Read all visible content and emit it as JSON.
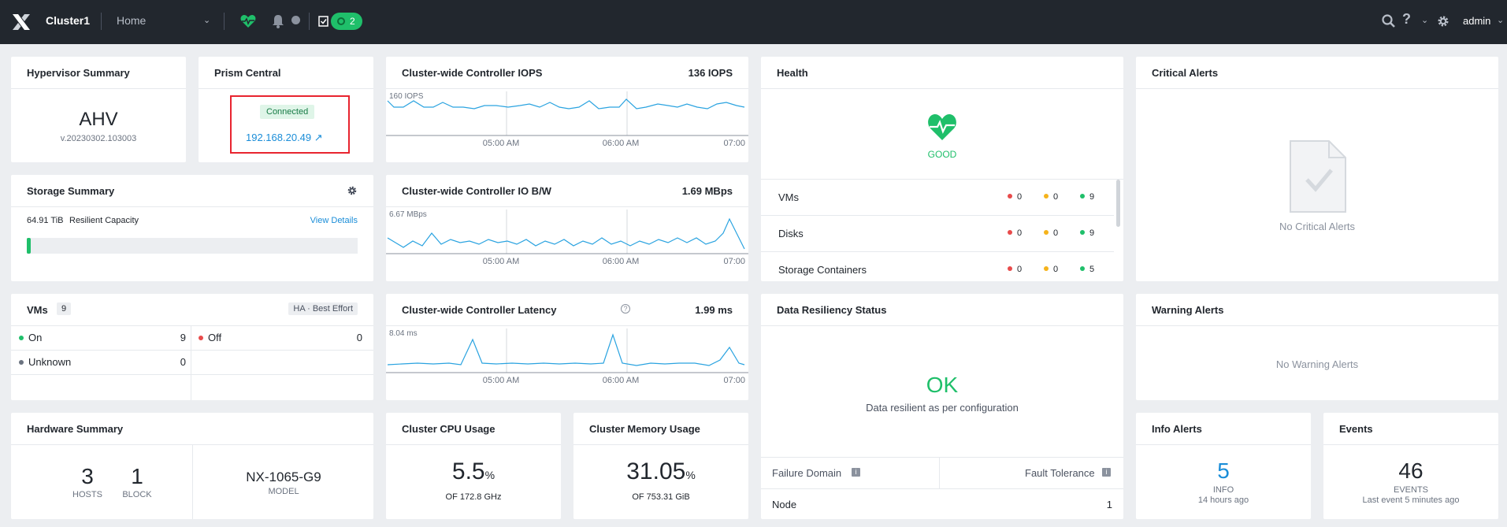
{
  "topbar": {
    "cluster_name": "Cluster1",
    "view": "Home",
    "tasks_count": "2",
    "user": "admin"
  },
  "hypervisor": {
    "title": "Hypervisor Summary",
    "name": "AHV",
    "version": "v.20230302.103003"
  },
  "prism_central": {
    "title": "Prism Central",
    "status": "Connected",
    "ip": "192.168.20.49 ↗"
  },
  "iops": {
    "title": "Cluster-wide Controller IOPS",
    "value": "136 IOPS",
    "max_label": "160 IOPS",
    "x_ticks": [
      "05:00 AM",
      "06:00 AM",
      "07:00"
    ]
  },
  "iobw": {
    "title": "Cluster-wide Controller IO B/W",
    "value": "1.69 MBps",
    "max_label": "6.67 MBps",
    "x_ticks": [
      "05:00 AM",
      "06:00 AM",
      "07:00"
    ]
  },
  "latency": {
    "title": "Cluster-wide Controller Latency",
    "value": "1.99 ms",
    "max_label": "8.04 ms",
    "x_ticks": [
      "05:00 AM",
      "06:00 AM",
      "07:00"
    ]
  },
  "health": {
    "title": "Health",
    "status": "GOOD",
    "rows": [
      {
        "label": "VMs",
        "red": "0",
        "yellow": "0",
        "green": "9"
      },
      {
        "label": "Disks",
        "red": "0",
        "yellow": "0",
        "green": "9"
      },
      {
        "label": "Storage Containers",
        "red": "0",
        "yellow": "0",
        "green": "5"
      }
    ]
  },
  "critical_alerts": {
    "title": "Critical Alerts",
    "empty": "No Critical Alerts"
  },
  "storage": {
    "title": "Storage Summary",
    "capacity": "64.91 TiB",
    "capacity_label": "Resilient Capacity",
    "view_details": "View Details",
    "used_fraction": 0.01
  },
  "vms": {
    "title": "VMs",
    "count": "9",
    "ha": "HA · Best Effort",
    "on_label": "On",
    "on": "9",
    "off_label": "Off",
    "off": "0",
    "unknown_label": "Unknown",
    "unknown": "0"
  },
  "data_resiliency": {
    "title": "Data Resiliency Status",
    "status": "OK",
    "desc": "Data resilient as per configuration",
    "failure_domain_label": "Failure Domain",
    "fault_tolerance_label": "Fault Tolerance",
    "node_label": "Node",
    "node_value": "1"
  },
  "warning_alerts": {
    "title": "Warning Alerts",
    "empty": "No Warning Alerts"
  },
  "hardware": {
    "title": "Hardware Summary",
    "hosts": "3",
    "hosts_label": "HOSTS",
    "blocks": "1",
    "blocks_label": "BLOCK",
    "model": "NX-1065-G9",
    "model_label": "MODEL"
  },
  "cpu": {
    "title": "Cluster CPU Usage",
    "value": "5.5",
    "unit": "%",
    "of": "OF 172.8 GHz"
  },
  "memory": {
    "title": "Cluster Memory Usage",
    "value": "31.05",
    "unit": "%",
    "of": "OF 753.31 GiB"
  },
  "info_alerts": {
    "title": "Info Alerts",
    "count": "5",
    "label": "INFO",
    "time": "14 hours ago"
  },
  "events": {
    "title": "Events",
    "count": "46",
    "label": "EVENTS",
    "time": "Last event 5 minutes ago"
  },
  "colors": {
    "accent": "#1a8dd8",
    "good": "#1fbf6a",
    "topbar": "#22272e",
    "highlight_box": "#e8242f"
  }
}
